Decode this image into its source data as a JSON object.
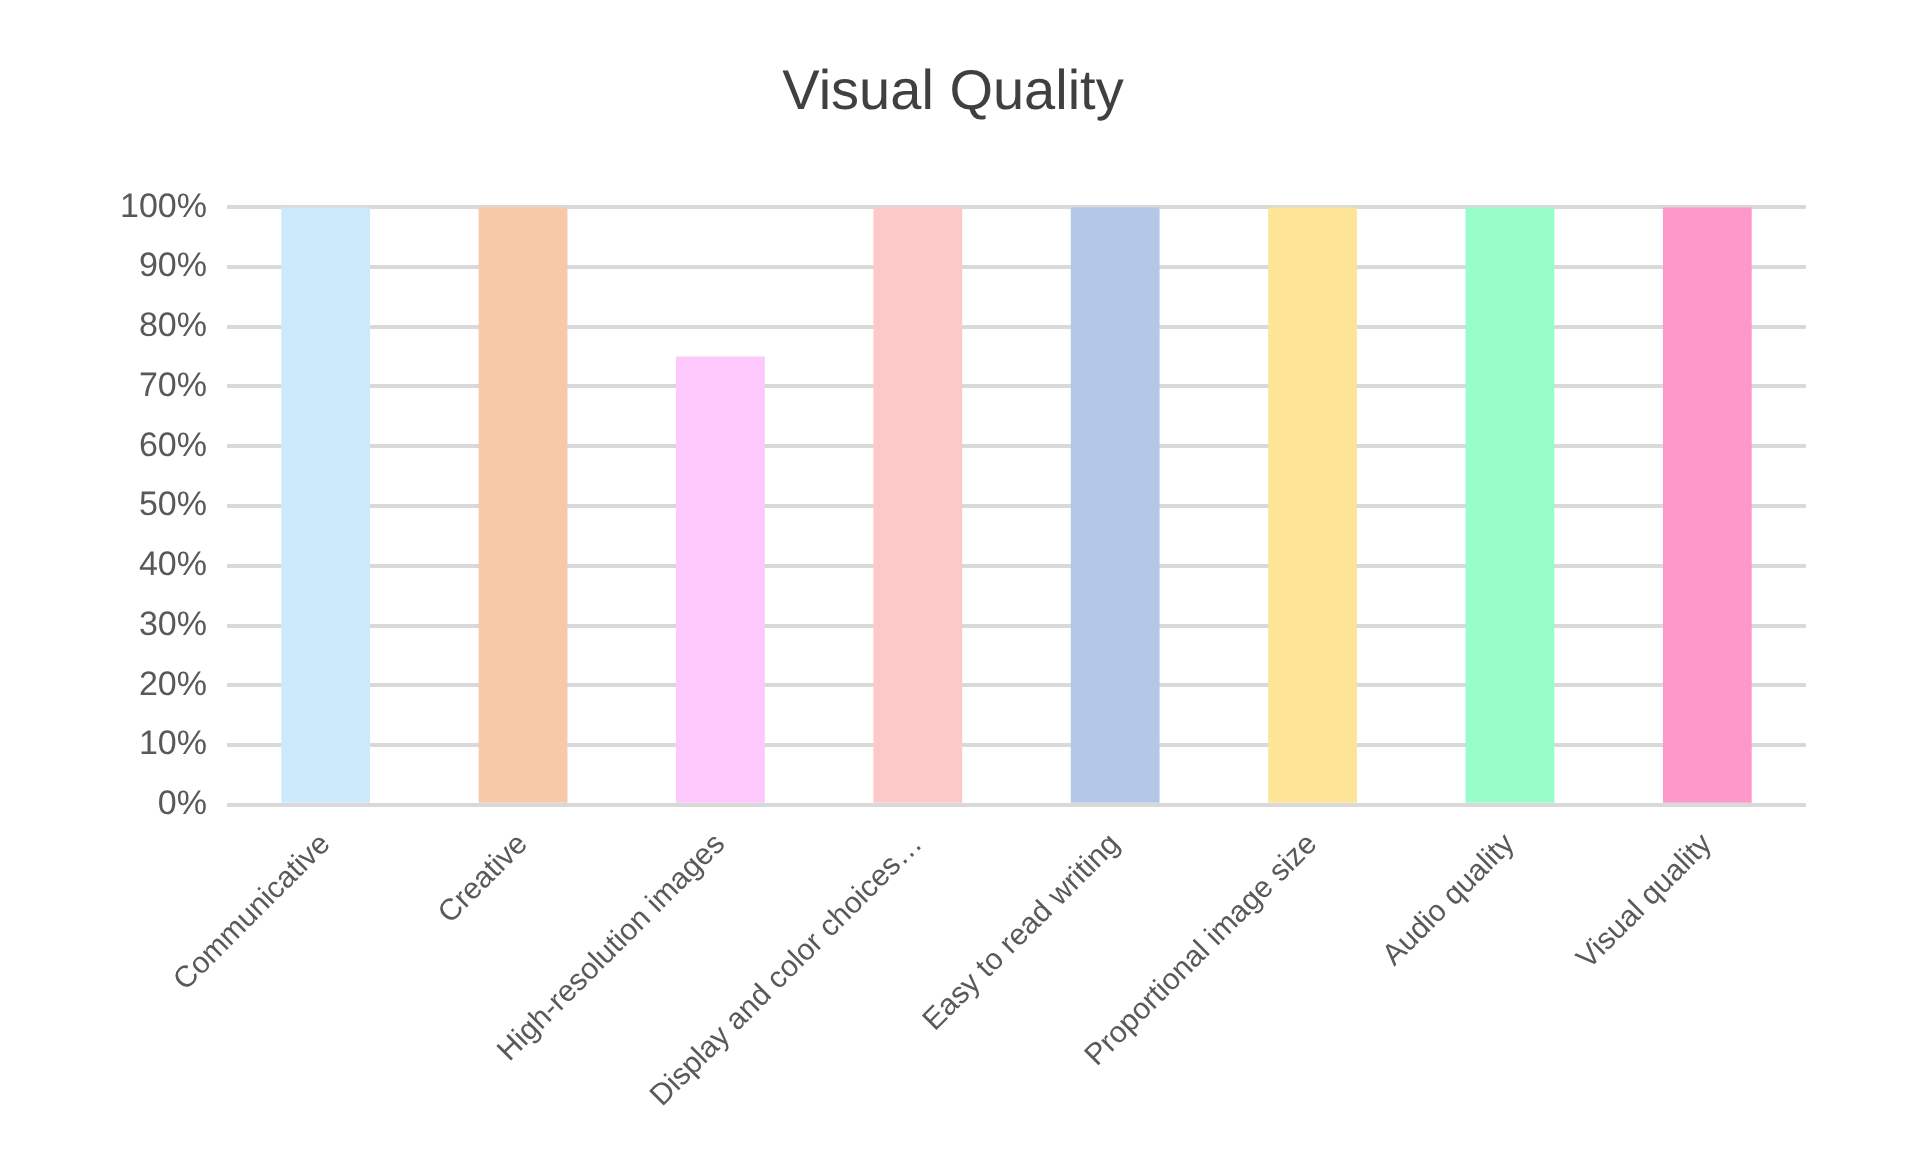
{
  "chart_data": {
    "type": "bar",
    "title": "Visual Quality",
    "categories": [
      "Communicative",
      "Creative",
      "High-resolution images",
      "Display and color choices…",
      "Easy to read writing",
      "Proportional image size",
      "Audio quality",
      "Visual quality"
    ],
    "values": [
      100,
      100,
      75,
      100,
      100,
      100,
      100,
      100
    ],
    "colors": [
      "#cdeafc",
      "#f6c9a9",
      "#fdc9fd",
      "#fdc8c8",
      "#b4c7e7",
      "#fde497",
      "#97fdc9",
      "#fd98cb"
    ],
    "ylim": [
      0,
      100
    ],
    "yticks": [
      {
        "value": 0,
        "label": "0%"
      },
      {
        "value": 10,
        "label": "10%"
      },
      {
        "value": 20,
        "label": "20%"
      },
      {
        "value": 30,
        "label": "30%"
      },
      {
        "value": 40,
        "label": "40%"
      },
      {
        "value": 50,
        "label": "50%"
      },
      {
        "value": 60,
        "label": "60%"
      },
      {
        "value": 70,
        "label": "70%"
      },
      {
        "value": 80,
        "label": "80%"
      },
      {
        "value": 90,
        "label": "90%"
      },
      {
        "value": 100,
        "label": "100%"
      }
    ],
    "grid": "y",
    "legend": false
  }
}
